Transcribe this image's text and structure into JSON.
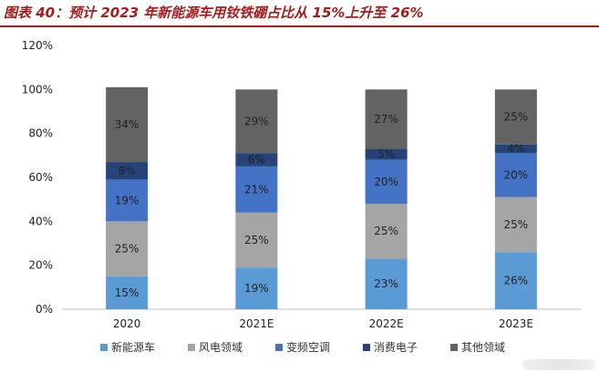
{
  "header": {
    "title": "图表 40：预计 2023 年新能源车用钕铁硼占比从 15%上升至 26%"
  },
  "chart_data": {
    "type": "bar",
    "stacked": true,
    "categories": [
      "2020",
      "2021E",
      "2022E",
      "2023E"
    ],
    "ylim": [
      0,
      120
    ],
    "yticks": [
      "0%",
      "20%",
      "40%",
      "60%",
      "80%",
      "100%",
      "120%"
    ],
    "grid": false,
    "legend_position": "bottom",
    "series": [
      {
        "name": "新能源车",
        "color": "#5b9bd5",
        "values": [
          15,
          19,
          23,
          26
        ],
        "labels": [
          "15%",
          "19%",
          "23%",
          "26%"
        ]
      },
      {
        "name": "风电领域",
        "color": "#a5a5a5",
        "values": [
          25,
          25,
          25,
          25
        ],
        "labels": [
          "25%",
          "25%",
          "25%",
          "25%"
        ]
      },
      {
        "name": "变频空调",
        "color": "#4472c4",
        "values": [
          19,
          21,
          20,
          20
        ],
        "labels": [
          "19%",
          "21%",
          "20%",
          "20%"
        ]
      },
      {
        "name": "消费电子",
        "color": "#264478",
        "values": [
          8,
          6,
          5,
          4
        ],
        "labels": [
          "8%",
          "6%",
          "5%",
          "4%"
        ]
      },
      {
        "name": "其他领域",
        "color": "#636363",
        "values": [
          34,
          29,
          27,
          25
        ],
        "labels": [
          "34%",
          "29%",
          "27%",
          "25%"
        ]
      }
    ]
  }
}
